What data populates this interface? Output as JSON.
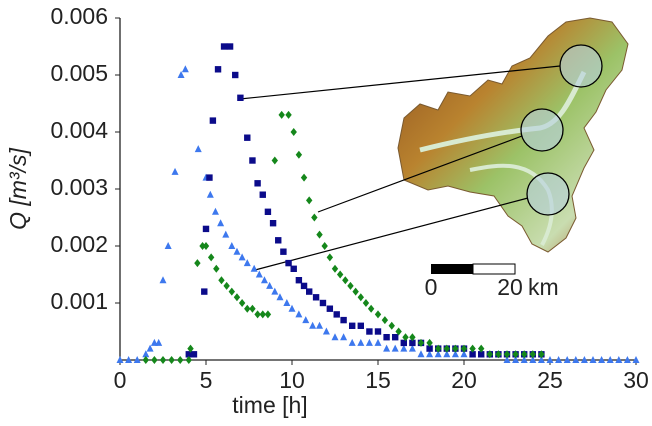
{
  "chart_data": {
    "type": "scatter",
    "x_label": "time [h]",
    "y_label": "Q [m³/s]",
    "xlim": [
      0,
      30
    ],
    "xticks": [
      0,
      5,
      10,
      15,
      20,
      25,
      30
    ],
    "ylim": [
      0,
      0.006
    ],
    "yticks": [
      0.001,
      0.002,
      0.003,
      0.004,
      0.005,
      0.006
    ],
    "series": [
      {
        "color": "#3d78ee",
        "marker": "triangle",
        "x": [
          0,
          0.5,
          1,
          1.5,
          1.75,
          2,
          2.25,
          2.5,
          2.8,
          3.2,
          3.55,
          3.8,
          4.55,
          5,
          5.25,
          5.55,
          5.85,
          6.15,
          6.5,
          6.8,
          7.1,
          7.4,
          7.8,
          8.1,
          8.4,
          8.7,
          9,
          9.3,
          9.7,
          10,
          10.4,
          10.8,
          11.2,
          11.6,
          12,
          12.5,
          13,
          13.5,
          14,
          14.5,
          15,
          15.5,
          16,
          16.5,
          17,
          17.5,
          18,
          18.5,
          19,
          19.5,
          20,
          20.5,
          21,
          21.5,
          22,
          22.5,
          23,
          23.5,
          24,
          24.5,
          25,
          25.5,
          26,
          26.5,
          27,
          27.5,
          28,
          28.5,
          29,
          29.5,
          30
        ],
        "values": [
          0,
          0,
          0,
          0.0001,
          0.0002,
          0.0003,
          0.0003,
          0.0014,
          0.002,
          0.0033,
          0.005,
          0.0051,
          0.0037,
          0.0032,
          0.0029,
          0.0026,
          0.0024,
          0.0022,
          0.002,
          0.0019,
          0.0018,
          0.0017,
          0.0016,
          0.0015,
          0.0014,
          0.0013,
          0.0012,
          0.0011,
          0.001,
          0.0009,
          0.0008,
          0.0007,
          0.0006,
          0.0006,
          0.0005,
          0.0004,
          0.0004,
          0.0003,
          0.0003,
          0.0003,
          0.0003,
          0.0002,
          0.0002,
          0.0002,
          0.0002,
          0.0001,
          0.0001,
          0.0001,
          0.0001,
          0.0001,
          0.0001,
          0.0001,
          0.0001,
          0.0001,
          0.0001,
          0,
          0,
          0,
          0,
          0,
          0,
          0,
          0,
          0,
          0,
          0,
          0,
          0,
          0,
          0,
          0
        ]
      },
      {
        "color": "#0b0b8a",
        "marker": "square",
        "x": [
          4,
          4.3,
          4.9,
          5.0,
          5.2,
          5.4,
          5.7,
          6.05,
          6.4,
          6.7,
          7.0,
          7.4,
          7.7,
          8.0,
          8.3,
          8.6,
          8.9,
          9.2,
          9.5,
          9.8,
          10.1,
          10.4,
          10.7,
          11,
          11.4,
          11.8,
          12.2,
          12.6,
          13,
          13.5,
          14,
          14.5,
          15,
          15.5,
          16,
          16.5,
          17,
          17.5,
          18,
          18.5,
          19,
          19.5,
          20,
          20.5,
          21,
          21.5,
          22,
          22.5,
          23,
          23.5,
          24,
          24.5
        ],
        "values": [
          0.0001,
          0.0001,
          0.0012,
          0.0023,
          0.0032,
          0.0042,
          0.0051,
          0.0055,
          0.0055,
          0.005,
          0.0046,
          0.0039,
          0.0035,
          0.0031,
          0.0029,
          0.0026,
          0.0024,
          0.0021,
          0.0019,
          0.0017,
          0.0016,
          0.0014,
          0.0013,
          0.0012,
          0.0011,
          0.001,
          0.0009,
          0.0008,
          0.0007,
          0.0006,
          0.0006,
          0.0005,
          0.0005,
          0.0004,
          0.0004,
          0.0003,
          0.0003,
          0.0003,
          0.0002,
          0.0002,
          0.0002,
          0.0002,
          0.0002,
          0.0001,
          0.0001,
          0.0001,
          0.0001,
          0.0001,
          0.0001,
          0.0001,
          0.0001,
          0.0001
        ]
      },
      {
        "color": "#15871b",
        "marker": "diamond",
        "x": [
          1.5,
          2,
          2.5,
          3,
          3.5,
          4,
          4.1,
          4.5,
          4.8,
          5.0,
          5.3,
          5.6,
          5.9,
          6.2,
          6.5,
          6.8,
          7.1,
          7.4,
          7.7,
          8.0,
          8.3,
          8.6,
          9.0,
          9.4,
          9.8,
          10.1,
          10.4,
          10.7,
          11,
          11.3,
          11.6,
          11.9,
          12.2,
          12.5,
          12.8,
          13.1,
          13.4,
          13.7,
          14,
          14.3,
          14.6,
          15,
          15.4,
          15.8,
          16.2,
          16.6,
          17,
          17.5,
          18,
          18.5,
          19,
          19.5,
          20,
          20.5,
          21,
          21.5,
          22,
          22.5,
          23,
          23.5,
          24,
          24.5
        ],
        "values": [
          0,
          0,
          0,
          0,
          0,
          0,
          0.0002,
          0.0017,
          0.002,
          0.002,
          0.0018,
          0.0016,
          0.0014,
          0.0013,
          0.0012,
          0.0011,
          0.001,
          0.0009,
          0.0009,
          0.0008,
          0.0008,
          0.0008,
          0.0035,
          0.0043,
          0.0043,
          0.004,
          0.0036,
          0.0032,
          0.0028,
          0.0025,
          0.0022,
          0.002,
          0.0018,
          0.0016,
          0.0015,
          0.0014,
          0.0013,
          0.0012,
          0.0011,
          0.001,
          0.0009,
          0.0008,
          0.0007,
          0.0006,
          0.0005,
          0.0004,
          0.0004,
          0.0003,
          0.0003,
          0.0002,
          0.0002,
          0.0002,
          0.0002,
          0.0002,
          0.0002,
          0.0001,
          0.0001,
          0.0001,
          0.0001,
          0.0001,
          0.0001,
          0.0001
        ]
      }
    ]
  },
  "scale_bar": {
    "start": "0",
    "end": "20",
    "unit": "km"
  }
}
